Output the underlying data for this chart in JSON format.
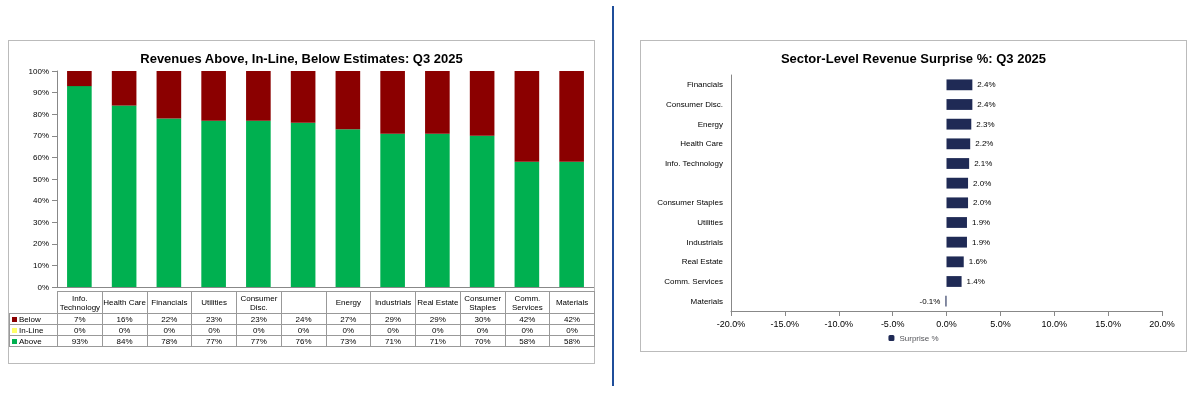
{
  "chart_data": [
    {
      "type": "bar",
      "title": "Revenues Above, In-Line, Below Estimates: Q3 2025",
      "stacked": true,
      "categories": [
        "Info. Technology",
        "Health Care",
        "Financials",
        "Utilities",
        "Consumer Disc.",
        null,
        "Energy",
        "Industrials",
        "Real Estate",
        "Consumer Staples",
        "Comm. Services",
        "Materials"
      ],
      "series": [
        {
          "name": "Above",
          "color": "#00b050",
          "values": [
            93,
            84,
            78,
            77,
            77,
            76,
            73,
            71,
            71,
            70,
            58,
            58
          ],
          "value_labels": [
            "93%",
            "84%",
            "78%",
            "77%",
            "77%",
            "76%",
            "73%",
            "71%",
            "71%",
            "70%",
            "58%",
            "58%"
          ]
        },
        {
          "name": "In-Line",
          "color": "#ffff66",
          "values": [
            0,
            0,
            0,
            0,
            0,
            0,
            0,
            0,
            0,
            0,
            0,
            0
          ],
          "value_labels": [
            "0%",
            "0%",
            "0%",
            "0%",
            "0%",
            "0%",
            "0%",
            "0%",
            "0%",
            "0%",
            "0%",
            "0%"
          ]
        },
        {
          "name": "Below",
          "color": "#8b0000",
          "values": [
            7,
            16,
            22,
            23,
            23,
            24,
            27,
            29,
            29,
            30,
            42,
            42
          ],
          "value_labels": [
            "7%",
            "16%",
            "22%",
            "23%",
            "23%",
            "24%",
            "27%",
            "29%",
            "29%",
            "30%",
            "42%",
            "42%"
          ]
        }
      ],
      "ylim": [
        0,
        100
      ],
      "yticks": [
        {
          "value": 0,
          "label": "0%"
        },
        {
          "value": 10,
          "label": "10%"
        },
        {
          "value": 20,
          "label": "20%"
        },
        {
          "value": 30,
          "label": "30%"
        },
        {
          "value": 40,
          "label": "40%"
        },
        {
          "value": 50,
          "label": "50%"
        },
        {
          "value": 60,
          "label": "60%"
        },
        {
          "value": 70,
          "label": "70%"
        },
        {
          "value": 80,
          "label": "80%"
        },
        {
          "value": 90,
          "label": "90%"
        },
        {
          "value": 100,
          "label": "100%"
        }
      ],
      "grid": false,
      "legend": "bottom"
    },
    {
      "type": "bar",
      "title": "Sector-Level Revenue Surprise %: Q3 2025",
      "orientation": "horizontal",
      "categories": [
        "Financials",
        "Consumer Disc.",
        "Energy",
        "Health Care",
        "Info. Technology",
        null,
        "Consumer Staples",
        "Utilities",
        "Industrials",
        "Real Estate",
        "Comm. Services",
        "Materials"
      ],
      "series": [
        {
          "name": "Surprise %",
          "color": "#1f2a55",
          "values": [
            2.4,
            2.4,
            2.3,
            2.2,
            2.1,
            2.0,
            2.0,
            1.9,
            1.9,
            1.6,
            1.4,
            -0.1
          ],
          "value_labels": [
            "2.4%",
            "2.4%",
            "2.3%",
            "2.2%",
            "2.1%",
            "2.0%",
            "2.0%",
            "1.9%",
            "1.9%",
            "1.6%",
            "1.4%",
            "-0.1%"
          ]
        }
      ],
      "xlim": [
        -20,
        20
      ],
      "xticks": [
        {
          "value": -20,
          "label": "-20.0%"
        },
        {
          "value": -15,
          "label": "-15.0%"
        },
        {
          "value": -10,
          "label": "-10.0%"
        },
        {
          "value": -5,
          "label": "-5.0%"
        },
        {
          "value": 0,
          "label": "0.0%"
        },
        {
          "value": 5,
          "label": "5.0%"
        },
        {
          "value": 10,
          "label": "10.0%"
        },
        {
          "value": 15,
          "label": "15.0%"
        },
        {
          "value": 20,
          "label": "20.0%"
        }
      ],
      "grid": false,
      "legend": "bottom"
    }
  ]
}
